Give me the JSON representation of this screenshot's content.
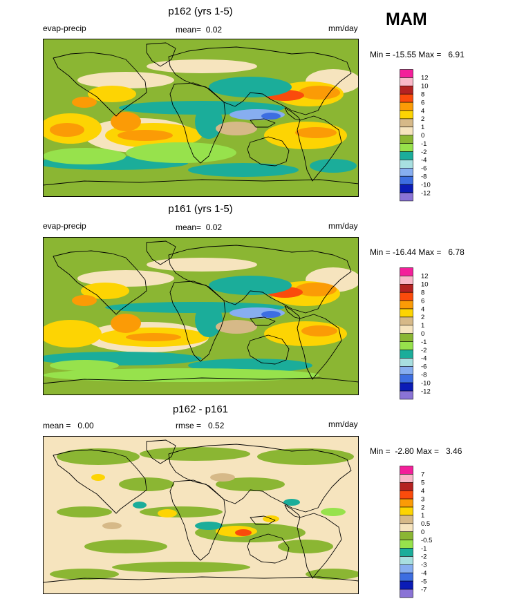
{
  "season": "MAM",
  "panels": [
    {
      "title": "p162 (yrs 1-5)",
      "left_label": "evap-precip",
      "center_label": "mean=  0.02",
      "right_label": "mm/day",
      "minmax": "Min = -15.55 Max =   6.91",
      "colorbar": {
        "colors": [
          "#f31f9a",
          "#f9b8c8",
          "#b42222",
          "#fa4b0c",
          "#fb9b06",
          "#fdd403",
          "#d6b988",
          "#f6e4be",
          "#8bb633",
          "#97e24c",
          "#1bad9a",
          "#a8dfe0",
          "#87aef0",
          "#3d6ee1",
          "#0b1cb6",
          "#8a73d6"
        ],
        "labels": [
          "12",
          "10",
          "8",
          "6",
          "4",
          "2",
          "1",
          "0",
          "-1",
          "-2",
          "-4",
          "-6",
          "-8",
          "-10",
          "-12"
        ]
      },
      "map_colors": {
        "base": "#8bb633"
      }
    },
    {
      "title": "p161 (yrs 1-5)",
      "left_label": "evap-precip",
      "center_label": "mean=  0.02",
      "right_label": "mm/day",
      "minmax": "Min = -16.44 Max =   6.78",
      "colorbar": {
        "colors": [
          "#f31f9a",
          "#f9b8c8",
          "#b42222",
          "#fa4b0c",
          "#fb9b06",
          "#fdd403",
          "#d6b988",
          "#f6e4be",
          "#8bb633",
          "#97e24c",
          "#1bad9a",
          "#a8dfe0",
          "#87aef0",
          "#3d6ee1",
          "#0b1cb6",
          "#8a73d6"
        ],
        "labels": [
          "12",
          "10",
          "8",
          "6",
          "4",
          "2",
          "1",
          "0",
          "-1",
          "-2",
          "-4",
          "-6",
          "-8",
          "-10",
          "-12"
        ]
      },
      "map_colors": {
        "base": "#8bb633"
      }
    },
    {
      "title": "p162 - p161",
      "left_label": "mean =   0.00",
      "center_label": "rmse =   0.52",
      "right_label": "mm/day",
      "minmax": "Min =  -2.80 Max =   3.46",
      "colorbar": {
        "colors": [
          "#f31f9a",
          "#f9b8c8",
          "#b42222",
          "#fa4b0c",
          "#fb9b06",
          "#fdd403",
          "#d6b988",
          "#f6e4be",
          "#8bb633",
          "#97e24c",
          "#1bad9a",
          "#a8dfe0",
          "#87aef0",
          "#3d6ee1",
          "#0b1cb6",
          "#8a73d6"
        ],
        "labels": [
          "7",
          "5",
          "4",
          "3",
          "2",
          "1",
          "0.5",
          "0",
          "-0.5",
          "-1",
          "-2",
          "-3",
          "-4",
          "-5",
          "-7"
        ]
      },
      "map_colors": {
        "base": "#f6e4be"
      }
    }
  ]
}
